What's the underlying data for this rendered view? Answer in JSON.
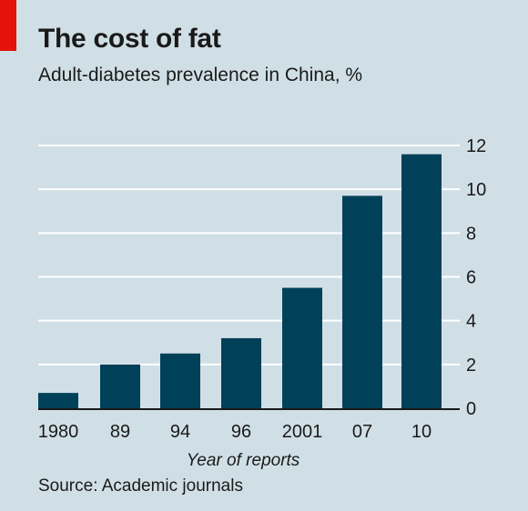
{
  "header": {
    "title": "The cost of fat",
    "subtitle": "Adult-diabetes prevalence in China, %"
  },
  "footer": {
    "source": "Source: Academic journals"
  },
  "colors": {
    "background": "#d0dfe6",
    "bar": "#004059",
    "accent": "#e3120b",
    "gridline": "#ffffff"
  },
  "chart_data": {
    "type": "bar",
    "title": "The cost of fat",
    "subtitle": "Adult-diabetes prevalence in China, %",
    "categories": [
      "1980",
      "89",
      "94",
      "96",
      "2001",
      "07",
      "10"
    ],
    "values": [
      0.7,
      2.0,
      2.5,
      3.2,
      5.5,
      9.7,
      11.6
    ],
    "xlabel": "Year of reports",
    "ylabel": "",
    "ylim": [
      0,
      12
    ],
    "yticks": [
      "0",
      "2",
      "4",
      "6",
      "8",
      "10",
      "12"
    ],
    "y_axis_side": "right",
    "grid": true,
    "legend": "none"
  }
}
